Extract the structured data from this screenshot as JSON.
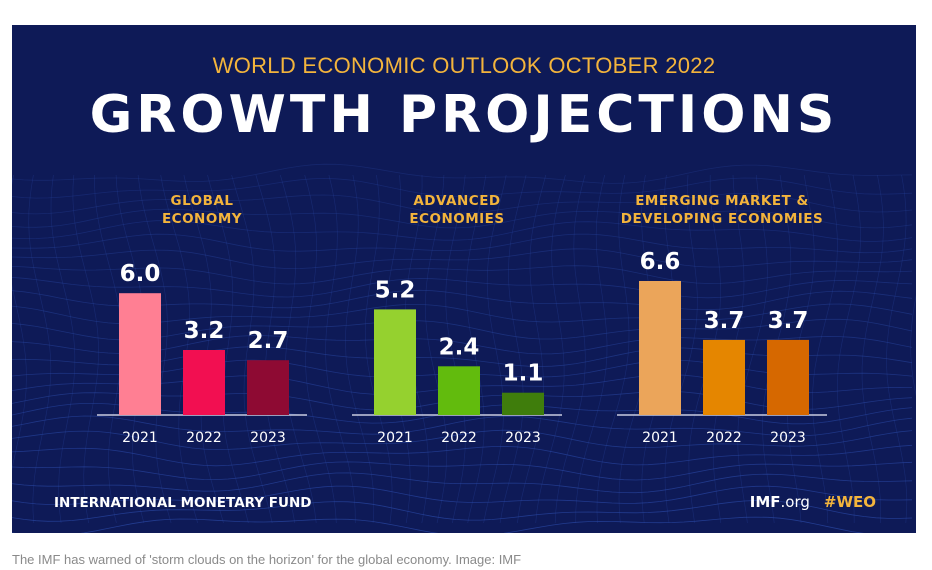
{
  "header": {
    "subtitle": "WORLD ECONOMIC OUTLOOK OCTOBER 2022",
    "title": "GROWTH PROJECTIONS"
  },
  "chart_data": [
    {
      "type": "bar",
      "title_lines": [
        "GLOBAL",
        "ECONOMY"
      ],
      "categories": [
        "2021",
        "2022",
        "2023"
      ],
      "values": [
        6.0,
        3.2,
        2.7
      ],
      "value_labels": [
        "6.0",
        "3.2",
        "2.7"
      ],
      "colors": [
        "#ff7f93",
        "#f20f51",
        "#8e0a33"
      ],
      "ylim": [
        0,
        6.6
      ],
      "grid": false
    },
    {
      "type": "bar",
      "title_lines": [
        "ADVANCED",
        "ECONOMIES"
      ],
      "categories": [
        "2021",
        "2022",
        "2023"
      ],
      "values": [
        5.2,
        2.4,
        1.1
      ],
      "value_labels": [
        "5.2",
        "2.4",
        "1.1"
      ],
      "colors": [
        "#95d12f",
        "#62bb0d",
        "#3f7d0c"
      ],
      "ylim": [
        0,
        6.6
      ],
      "grid": false
    },
    {
      "type": "bar",
      "title_lines": [
        "EMERGING MARKET &",
        "DEVELOPING ECONOMIES"
      ],
      "categories": [
        "2021",
        "2022",
        "2023"
      ],
      "values": [
        6.6,
        3.7,
        3.7
      ],
      "value_labels": [
        "6.6",
        "3.7",
        "3.7"
      ],
      "colors": [
        "#eba55a",
        "#e58600",
        "#d66800"
      ],
      "ylim": [
        0,
        6.6
      ],
      "grid": false
    }
  ],
  "footer": {
    "organization": "INTERNATIONAL MONETARY FUND",
    "site_name": "IMF",
    "site_tld": ".org",
    "hashtag": "#WEO"
  },
  "caption": "The IMF has warned of 'storm clouds on the horizon' for the global economy. Image: IMF",
  "colors": {
    "background": "#0e1a57",
    "accent": "#f3b43c"
  }
}
